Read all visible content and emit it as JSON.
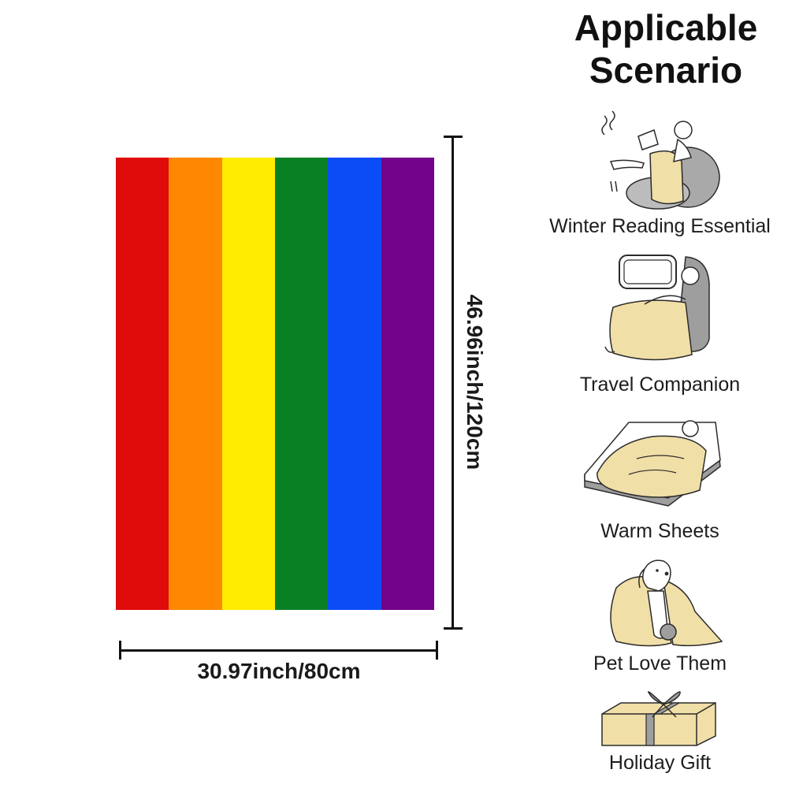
{
  "title": {
    "line1": "Applicable",
    "line2": "Scenario"
  },
  "product": {
    "stripe_colors": [
      "#e00b0b",
      "#ff8800",
      "#ffec00",
      "#098024",
      "#0c4cf7",
      "#73028a"
    ],
    "width_label": "30.97inch/80cm",
    "height_label": "46.96inch/120cm"
  },
  "scenarios": [
    {
      "label": "Winter Reading Essential",
      "icon": "reading-icon"
    },
    {
      "label": "Travel Companion",
      "icon": "travel-seat-icon"
    },
    {
      "label": "Warm Sheets",
      "icon": "bed-icon"
    },
    {
      "label": "Pet Love Them",
      "icon": "dog-icon"
    },
    {
      "label": "Holiday Gift",
      "icon": "gift-box-icon"
    }
  ],
  "colors": {
    "blanket_beige": "#f1dfa8",
    "line_art": "#2b2b2b",
    "furniture_gray": "#9e9e9e"
  }
}
